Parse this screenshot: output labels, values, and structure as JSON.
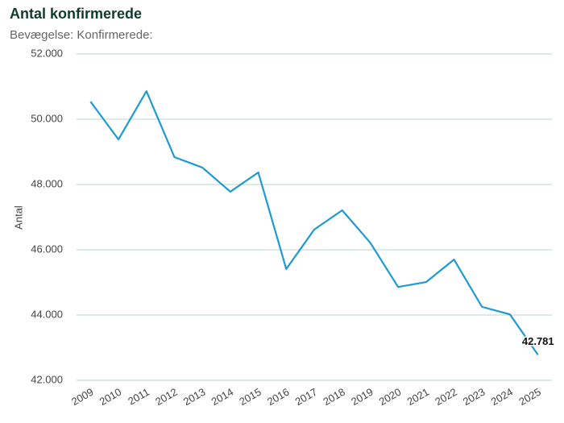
{
  "chart_data": {
    "type": "line",
    "title": "Antal konfirmerede",
    "subtitle": "Bevægelse: Konfirmerede:",
    "y_label": "Antal",
    "categories": [
      "2009",
      "2010",
      "2011",
      "2012",
      "2013",
      "2014",
      "2015",
      "2016",
      "2017",
      "2018",
      "2019",
      "2020",
      "2021",
      "2022",
      "2023",
      "2024",
      "2025"
    ],
    "series": [
      {
        "name": "Konfirmerede",
        "color": "#1e9ad0",
        "values": [
          50540,
          49380,
          50860,
          48840,
          48520,
          47780,
          48370,
          45410,
          46620,
          47210,
          46220,
          44860,
          45010,
          45700,
          44250,
          44020,
          42781
        ],
        "value_labels": [
          null,
          null,
          null,
          null,
          null,
          null,
          null,
          null,
          null,
          null,
          null,
          null,
          null,
          null,
          null,
          null,
          "42.781"
        ]
      }
    ],
    "ylim": [
      42000,
      52000
    ],
    "yticks": [
      {
        "value": 42000,
        "label": "42.000"
      },
      {
        "value": 44000,
        "label": "44.000"
      },
      {
        "value": 46000,
        "label": "46.000"
      },
      {
        "value": 48000,
        "label": "48.000"
      },
      {
        "value": 50000,
        "label": "50.000"
      },
      {
        "value": 52000,
        "label": "52.000"
      }
    ],
    "grid": true
  }
}
